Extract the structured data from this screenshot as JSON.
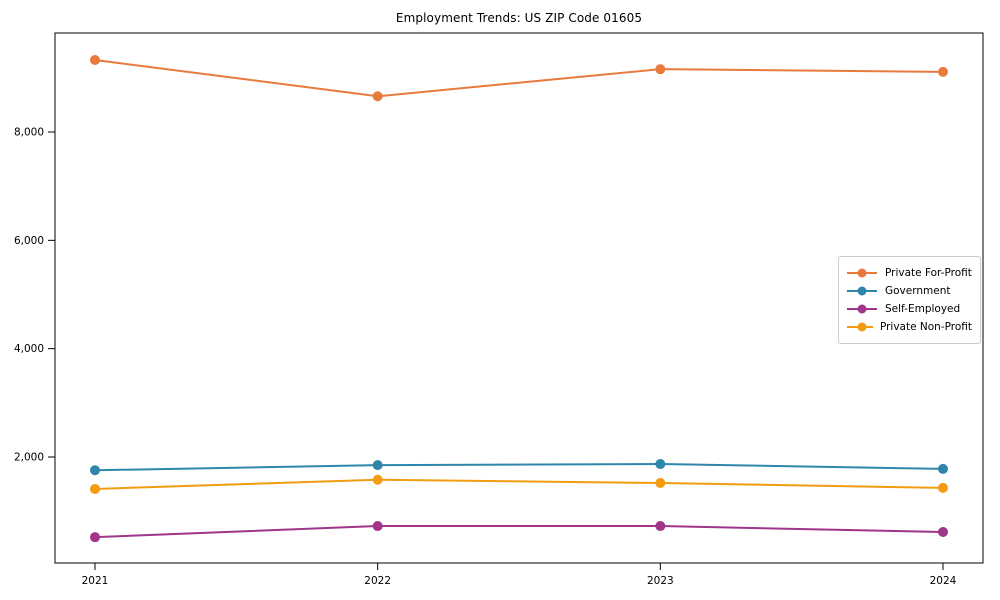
{
  "figure": {
    "background": "#ffffff",
    "axis_color": "#000000"
  },
  "chart_data": {
    "type": "line",
    "title": "Employment Trends: US ZIP Code 01605",
    "x": [
      2021,
      2022,
      2023,
      2024
    ],
    "x_tick_labels": [
      "2021",
      "2022",
      "2023",
      "2024"
    ],
    "series": [
      {
        "name": "Private For-Profit",
        "color": "#E87A3E",
        "values": [
          9330,
          8660,
          9160,
          9110
        ]
      },
      {
        "name": "Government",
        "color": "#2F86AB",
        "values": [
          1755,
          1850,
          1870,
          1780
        ]
      },
      {
        "name": "Self-Employed",
        "color": "#A0358A",
        "values": [
          520,
          725,
          725,
          615
        ]
      },
      {
        "name": "Private Non-Profit",
        "color": "#F39C12",
        "values": [
          1410,
          1580,
          1520,
          1430
        ]
      }
    ],
    "xlabel": "",
    "ylabel": "",
    "ylim": [
      43,
      9828
    ],
    "yticks": [
      2000,
      4000,
      6000,
      8000
    ],
    "ytick_labels": [
      "2,000",
      "4,000",
      "6,000",
      "8,000"
    ],
    "grid": false,
    "legend_position": "center-right",
    "marker": "circle",
    "line_width": 2,
    "marker_radius": 5
  }
}
